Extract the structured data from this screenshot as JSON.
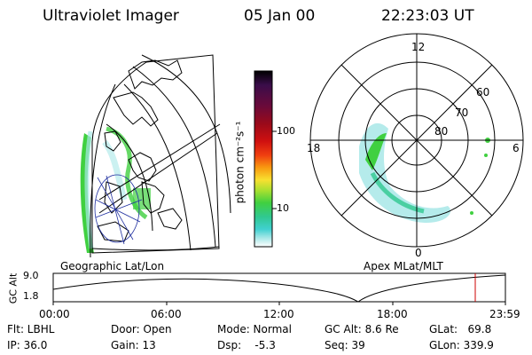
{
  "header": {
    "instrument": "Ultraviolet Imager",
    "date": "05 Jan 00",
    "time": "22:23:03 UT"
  },
  "colorbar": {
    "unit": "photon cm⁻²s⁻¹",
    "ticks": [
      "100",
      "10"
    ],
    "colors": [
      "#000000",
      "#3a0d4a",
      "#6a0a3a",
      "#9a0a1a",
      "#d01010",
      "#f04010",
      "#f89a10",
      "#f8e030",
      "#a8e030",
      "#40d040",
      "#30c890",
      "#40d0d0",
      "#a8e8e8",
      "#ffffff"
    ]
  },
  "geo_map": {
    "label": "Geographic Lat/Lon"
  },
  "polar_plot": {
    "label": "Apex MLat/MLT",
    "mlt_labels": {
      "top": "12",
      "left": "18",
      "right": "6",
      "bottom": "0"
    },
    "lat_labels": [
      "60",
      "70",
      "80"
    ]
  },
  "altitude_plot": {
    "ylabel": "GC Alt",
    "yticks": [
      "9.0",
      "1.8"
    ],
    "xticks": [
      "00:00",
      "06:00",
      "12:00",
      "18:00",
      "23:59"
    ],
    "marker_color": "#cc0000"
  },
  "info": {
    "filter": "Flt: LBHL",
    "ip": "IP: 36.0",
    "door": "Door: Open",
    "gain": "Gain: 13",
    "mode": "Mode: Normal",
    "dsp": "Dsp:    -5.3",
    "gc_alt": "GC Alt: 8.6 Re",
    "seq": "Seq: 39",
    "glat": "GLat:   69.8",
    "glon": "GLon: 339.9"
  }
}
